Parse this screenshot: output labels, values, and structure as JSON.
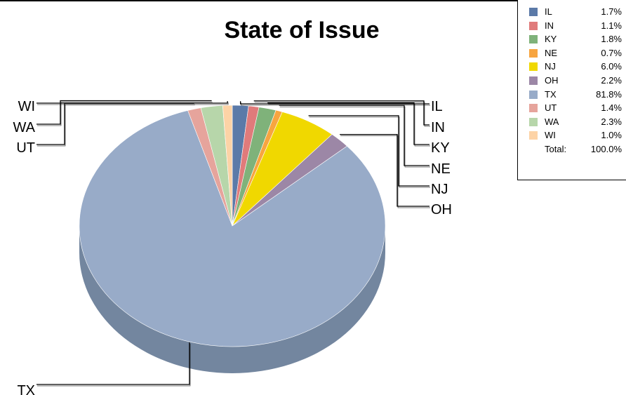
{
  "chart_data": {
    "type": "pie",
    "title": "State of Issue",
    "slices": [
      {
        "label": "IL",
        "value": 1.7,
        "color": "#5b7aa8"
      },
      {
        "label": "IN",
        "value": 1.1,
        "color": "#e07b7b"
      },
      {
        "label": "KY",
        "value": 1.8,
        "color": "#7fb27a"
      },
      {
        "label": "NE",
        "value": 0.7,
        "color": "#f7a540"
      },
      {
        "label": "NJ",
        "value": 6.0,
        "color": "#f0d800"
      },
      {
        "label": "OH",
        "value": 2.2,
        "color": "#9c87a6"
      },
      {
        "label": "TX",
        "value": 81.8,
        "color": "#98abc8"
      },
      {
        "label": "UT",
        "value": 1.4,
        "color": "#e6a49c"
      },
      {
        "label": "WA",
        "value": 2.3,
        "color": "#b7d6aa"
      },
      {
        "label": "WI",
        "value": 1.0,
        "color": "#fdd3a6"
      }
    ],
    "legend": {
      "placement": "top-right",
      "entries": [
        {
          "label": "IL",
          "pct": "1.7%"
        },
        {
          "label": "IN",
          "pct": "1.1%"
        },
        {
          "label": "KY",
          "pct": "1.8%"
        },
        {
          "label": "NE",
          "pct": "0.7%"
        },
        {
          "label": "NJ",
          "pct": "6.0%"
        },
        {
          "label": "OH",
          "pct": "2.2%"
        },
        {
          "label": "TX",
          "pct": "81.8%"
        },
        {
          "label": "UT",
          "pct": "1.4%"
        },
        {
          "label": "WA",
          "pct": "2.3%"
        },
        {
          "label": "WI",
          "pct": "1.0%"
        }
      ],
      "total_label": "Total:",
      "total_value": "100.0%"
    },
    "tx_side_color": "#73869f"
  }
}
